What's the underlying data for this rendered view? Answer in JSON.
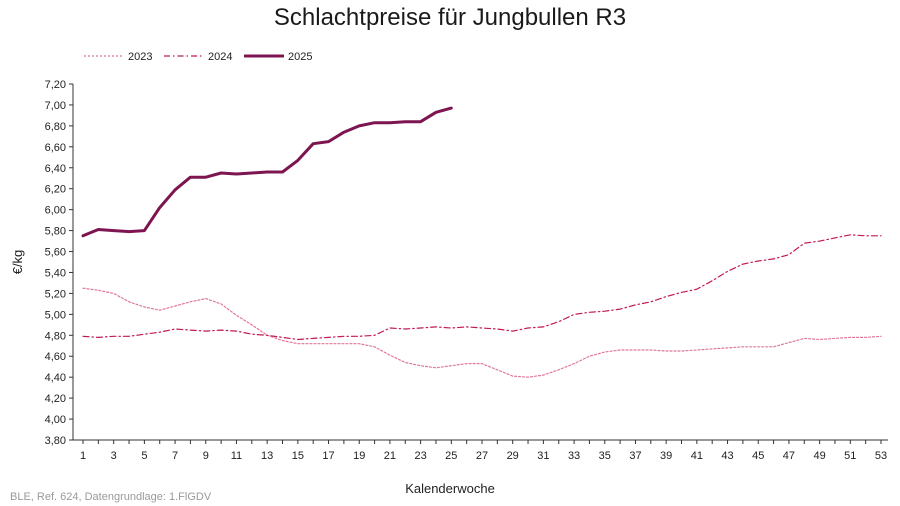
{
  "chart_data": {
    "type": "line",
    "title": "Schlachtpreise für Jungbullen R3",
    "xlabel": "Kalenderwoche",
    "ylabel": "€/kg",
    "xlim": [
      1,
      53
    ],
    "ylim": [
      3.8,
      7.2
    ],
    "x_ticks": [
      1,
      3,
      5,
      7,
      9,
      11,
      13,
      15,
      17,
      19,
      21,
      23,
      25,
      27,
      29,
      31,
      33,
      35,
      37,
      39,
      41,
      43,
      45,
      47,
      49,
      51,
      53
    ],
    "y_ticks": [
      "3,80",
      "4,00",
      "4,20",
      "4,40",
      "4,60",
      "4,80",
      "5,00",
      "5,20",
      "5,40",
      "5,60",
      "5,80",
      "6,00",
      "6,20",
      "6,40",
      "6,60",
      "6,80",
      "7,00",
      "7,20"
    ],
    "legend_position": "top-left",
    "grid": false,
    "series": [
      {
        "name": "2023",
        "color": "#e0789a",
        "style": "dotted",
        "x": [
          1,
          2,
          3,
          4,
          5,
          6,
          7,
          8,
          9,
          10,
          11,
          12,
          13,
          14,
          15,
          16,
          17,
          18,
          19,
          20,
          21,
          22,
          23,
          24,
          25,
          26,
          27,
          28,
          29,
          30,
          31,
          32,
          33,
          34,
          35,
          36,
          37,
          38,
          39,
          40,
          41,
          42,
          43,
          44,
          45,
          46,
          47,
          48,
          49,
          50,
          51,
          52,
          53
        ],
        "values": [
          5.25,
          5.23,
          5.2,
          5.12,
          5.07,
          5.04,
          5.08,
          5.12,
          5.15,
          5.1,
          4.99,
          4.9,
          4.8,
          4.75,
          4.72,
          4.72,
          4.72,
          4.72,
          4.72,
          4.69,
          4.61,
          4.54,
          4.51,
          4.49,
          4.51,
          4.53,
          4.53,
          4.47,
          4.41,
          4.4,
          4.42,
          4.47,
          4.53,
          4.6,
          4.64,
          4.66,
          4.66,
          4.66,
          4.65,
          4.65,
          4.66,
          4.67,
          4.68,
          4.69,
          4.69,
          4.69,
          4.73,
          4.77,
          4.76,
          4.77,
          4.78,
          4.78,
          4.79
        ]
      },
      {
        "name": "2024",
        "color": "#c2195a",
        "style": "dashdot",
        "x": [
          1,
          2,
          3,
          4,
          5,
          6,
          7,
          8,
          9,
          10,
          11,
          12,
          13,
          14,
          15,
          16,
          17,
          18,
          19,
          20,
          21,
          22,
          23,
          24,
          25,
          26,
          27,
          28,
          29,
          30,
          31,
          32,
          33,
          34,
          35,
          36,
          37,
          38,
          39,
          40,
          41,
          42,
          43,
          44,
          45,
          46,
          47,
          48,
          49,
          50,
          51,
          52,
          53
        ],
        "values": [
          4.79,
          4.78,
          4.79,
          4.79,
          4.81,
          4.83,
          4.86,
          4.85,
          4.84,
          4.85,
          4.84,
          4.81,
          4.8,
          4.78,
          4.76,
          4.77,
          4.78,
          4.79,
          4.79,
          4.8,
          4.87,
          4.86,
          4.87,
          4.88,
          4.87,
          4.88,
          4.87,
          4.86,
          4.84,
          4.87,
          4.88,
          4.93,
          5.0,
          5.02,
          5.03,
          5.05,
          5.09,
          5.12,
          5.17,
          5.21,
          5.24,
          5.32,
          5.41,
          5.48,
          5.51,
          5.53,
          5.57,
          5.68,
          5.7,
          5.73,
          5.76,
          5.75,
          5.75
        ]
      },
      {
        "name": "2025",
        "color": "#7d1550",
        "style": "solid",
        "x": [
          1,
          2,
          3,
          4,
          5,
          6,
          7,
          8,
          9,
          10,
          11,
          12,
          13,
          14,
          15,
          16,
          17,
          18,
          19,
          20,
          21,
          22,
          23,
          24,
          25
        ],
        "values": [
          5.75,
          5.81,
          5.8,
          5.79,
          5.8,
          6.02,
          6.19,
          6.31,
          6.31,
          6.35,
          6.34,
          6.35,
          6.36,
          6.36,
          6.47,
          6.63,
          6.65,
          6.74,
          6.8,
          6.83,
          6.83,
          6.84,
          6.84,
          6.93,
          6.97
        ]
      }
    ]
  },
  "source_note": "BLE, Ref. 624, Datengrundlage: 1.FlGDV"
}
